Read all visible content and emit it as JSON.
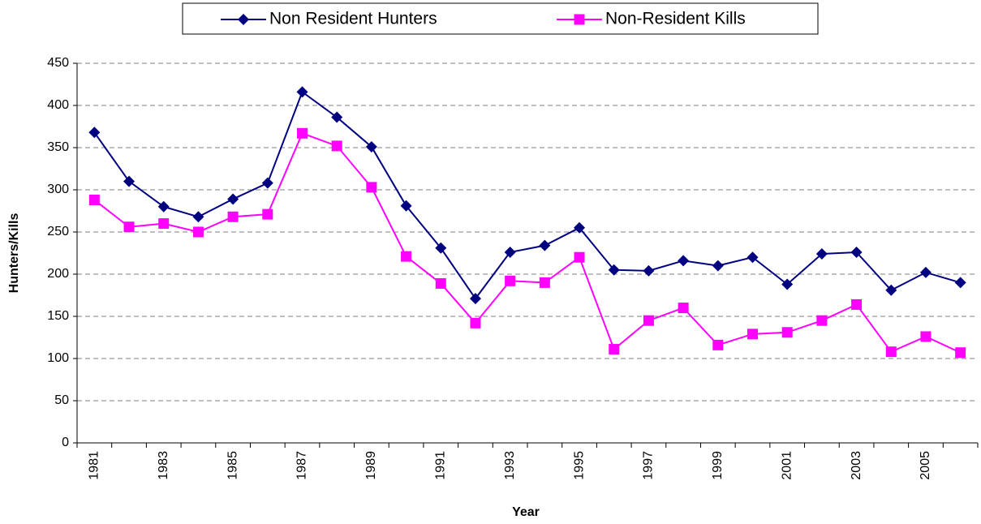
{
  "chart_data": {
    "type": "line",
    "x_label": "Year",
    "y_label": "Hunters/Kills",
    "categories": [
      "1981",
      null,
      "1983",
      null,
      "1985",
      null,
      "1987",
      null,
      "1989",
      null,
      "1991",
      null,
      "1993",
      null,
      "1995",
      null,
      "1997",
      null,
      "1999",
      null,
      "2001",
      null,
      "2003",
      null,
      "2005",
      null
    ],
    "series": [
      {
        "name": "Non Resident Hunters",
        "color": "#000080",
        "marker": "diamond",
        "values": [
          368,
          310,
          280,
          268,
          289,
          308,
          416,
          386,
          351,
          281,
          231,
          171,
          226,
          234,
          255,
          205,
          204,
          216,
          210,
          220,
          188,
          224,
          226,
          181,
          202,
          190
        ]
      },
      {
        "name": "Non-Resident Kills",
        "color": "#ff00ff",
        "marker": "square",
        "values": [
          288,
          256,
          260,
          250,
          268,
          271,
          367,
          352,
          303,
          221,
          189,
          142,
          192,
          190,
          220,
          111,
          145,
          160,
          116,
          129,
          131,
          145,
          164,
          108,
          126,
          107
        ]
      }
    ],
    "ylim": [
      0,
      450
    ],
    "yticks": [
      0,
      50,
      100,
      150,
      200,
      250,
      300,
      350,
      400,
      450
    ],
    "grid": true,
    "legend": "top"
  }
}
